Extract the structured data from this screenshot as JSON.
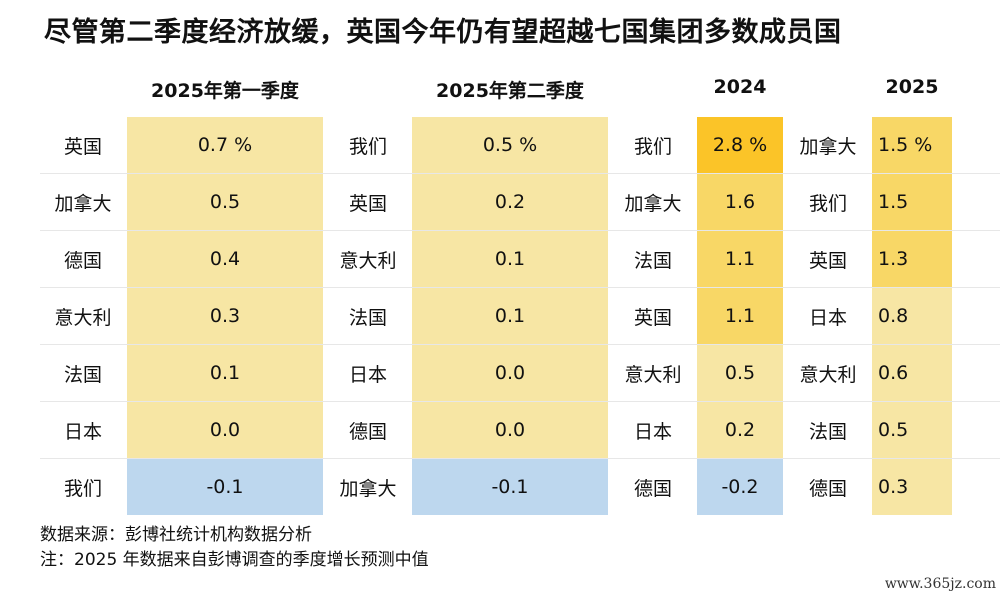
{
  "title": "尽管第二季度经济放缓，英国今年仍有望超越七国集团多数成员国",
  "headers": [
    "2025年第一季度",
    "2025年第二季度",
    "2024",
    "2025"
  ],
  "colors": {
    "pale": "#f7e6a4",
    "mid": "#f8d766",
    "strong": "#fbc428",
    "blue": "#bdd7ee"
  },
  "chart_data": {
    "type": "table",
    "tables": [
      {
        "header": "2025年第一季度",
        "rows": [
          {
            "country": "英国",
            "value": "0.7 %",
            "shade": "pale"
          },
          {
            "country": "加拿大",
            "value": "0.5",
            "shade": "pale"
          },
          {
            "country": "德国",
            "value": "0.4",
            "shade": "pale"
          },
          {
            "country": "意大利",
            "value": "0.3",
            "shade": "pale"
          },
          {
            "country": "法国",
            "value": "0.1",
            "shade": "pale"
          },
          {
            "country": "日本",
            "value": "0.0",
            "shade": "pale"
          },
          {
            "country": "我们",
            "value": "-0.1",
            "shade": "blue"
          }
        ]
      },
      {
        "header": "2025年第二季度",
        "rows": [
          {
            "country": "我们",
            "value": "0.5 %",
            "shade": "pale"
          },
          {
            "country": "英国",
            "value": "0.2",
            "shade": "pale"
          },
          {
            "country": "意大利",
            "value": "0.1",
            "shade": "pale"
          },
          {
            "country": "法国",
            "value": "0.1",
            "shade": "pale"
          },
          {
            "country": "日本",
            "value": "0.0",
            "shade": "pale"
          },
          {
            "country": "德国",
            "value": "0.0",
            "shade": "pale"
          },
          {
            "country": "加拿大",
            "value": "-0.1",
            "shade": "blue"
          }
        ]
      },
      {
        "header": "2024",
        "rows": [
          {
            "country": "我们",
            "value": "2.8 %",
            "shade": "strong"
          },
          {
            "country": "加拿大",
            "value": "1.6",
            "shade": "mid"
          },
          {
            "country": "法国",
            "value": "1.1",
            "shade": "mid"
          },
          {
            "country": "英国",
            "value": "1.1",
            "shade": "mid"
          },
          {
            "country": "意大利",
            "value": "0.5",
            "shade": "pale"
          },
          {
            "country": "日本",
            "value": "0.2",
            "shade": "pale"
          },
          {
            "country": "德国",
            "value": "-0.2",
            "shade": "blue"
          }
        ]
      },
      {
        "header": "2025",
        "rows": [
          {
            "country": "加拿大",
            "value": "1.5 %",
            "shade": "mid"
          },
          {
            "country": "我们",
            "value": "1.5",
            "shade": "mid"
          },
          {
            "country": "英国",
            "value": "1.3",
            "shade": "mid"
          },
          {
            "country": "日本",
            "value": "0.8",
            "shade": "pale"
          },
          {
            "country": "意大利",
            "value": "0.6",
            "shade": "pale"
          },
          {
            "country": "法国",
            "value": "0.5",
            "shade": "pale"
          },
          {
            "country": "德国",
            "value": "0.3",
            "shade": "pale"
          }
        ]
      }
    ]
  },
  "footer": {
    "source": "数据来源：彭博社统计机构数据分析",
    "note": "注：2025 年数据来自彭博调查的季度增长预测中值"
  },
  "watermark": "www.365jz.com"
}
